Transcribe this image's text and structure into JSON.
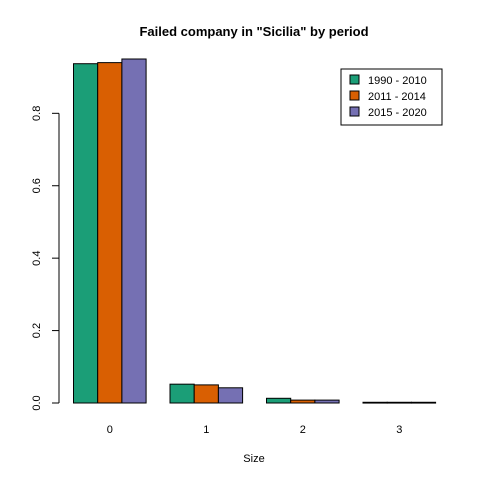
{
  "chart_data": {
    "type": "bar",
    "title": "Failed company in \"Sicilia\" by period",
    "xlabel": "Size",
    "ylabel": "",
    "categories": [
      "0",
      "1",
      "2",
      "3"
    ],
    "series": [
      {
        "name": "1990 - 2010",
        "color": "#1b9e77",
        "values": [
          0.937,
          0.052,
          0.013,
          0.002
        ]
      },
      {
        "name": "2011 - 2014",
        "color": "#d95f02",
        "values": [
          0.94,
          0.05,
          0.008,
          0.002
        ]
      },
      {
        "name": "2015 - 2020",
        "color": "#7570b3",
        "values": [
          0.95,
          0.042,
          0.008,
          0.002
        ]
      }
    ],
    "ylim": [
      0,
      0.95
    ],
    "yticks": [
      0.0,
      0.2,
      0.4,
      0.6,
      0.8
    ],
    "ytick_labels": [
      "0.0",
      "0.2",
      "0.4",
      "0.6",
      "0.8"
    ],
    "grid": false,
    "legend_position": "top-right"
  }
}
